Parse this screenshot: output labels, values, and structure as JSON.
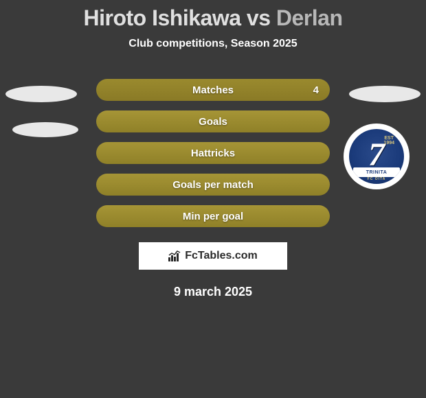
{
  "title": {
    "player1": "Hiroto Ishikawa",
    "vs": "vs",
    "player2": "Derlan"
  },
  "subtitle": "Club competitions, Season 2025",
  "stats": [
    {
      "label": "Matches",
      "value_right": "4",
      "bg": "#9a8a2e",
      "bg2": "#8a7a26"
    },
    {
      "label": "Goals",
      "value_right": "",
      "bg": "#a69536",
      "bg2": "#8f8028"
    },
    {
      "label": "Hattricks",
      "value_right": "",
      "bg": "#a69536",
      "bg2": "#8f8028"
    },
    {
      "label": "Goals per match",
      "value_right": "",
      "bg": "#a69536",
      "bg2": "#8f8028"
    },
    {
      "label": "Min per goal",
      "value_right": "",
      "bg": "#a69536",
      "bg2": "#8f8028"
    }
  ],
  "crest": {
    "org": "TRINITA",
    "sub": "FC OITA",
    "est": "EST",
    "year": "1994",
    "mark": "7",
    "outer_bg": "#ffffff",
    "inner_bg": "#1a3a7a"
  },
  "brand": {
    "text": "FcTables.com",
    "icon_color": "#2a2a2a"
  },
  "date": "9 march 2025",
  "colors": {
    "page_bg": "#3a3a3a",
    "title_p1": "#e0e0e0",
    "title_p2": "#b8b8b8",
    "text_white": "#ffffff"
  }
}
